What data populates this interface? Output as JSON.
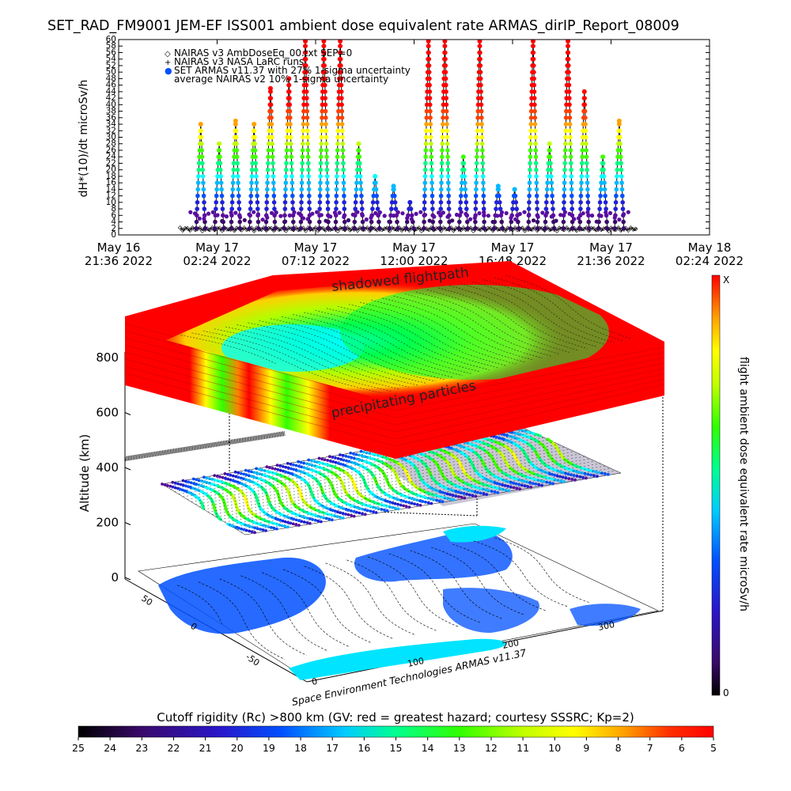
{
  "title": "SET_RAD_FM9001  JEM-EF ISS001 ambient dose equivalent rate ARMAS_dirIP_Report_08009",
  "colors": {
    "spectrum": [
      "#000000",
      "#3a0a6a",
      "#5a0ea0",
      "#2020d8",
      "#0050ff",
      "#00b8ff",
      "#00ffff",
      "#00ff80",
      "#40ff00",
      "#c0ff00",
      "#ffff00",
      "#ffa000",
      "#ff4000",
      "#ff0000"
    ],
    "ocean": "#00e4ff",
    "land": "#0050ff",
    "curve": "#000000"
  },
  "chart_data": [
    {
      "type": "scatter",
      "ylabel": "dH*(10)/dt microSv/h",
      "ylim": [
        0,
        60
      ],
      "yticks": [
        "0",
        "2",
        "4",
        "6",
        "8",
        "10",
        "12",
        "14",
        "16",
        "18",
        "20",
        "22",
        "24",
        "26",
        "28",
        "30",
        "32",
        "34",
        "36",
        "38",
        "40",
        "42",
        "44",
        "46",
        "48",
        "50",
        "52",
        "54",
        "56",
        "58",
        "60"
      ],
      "xticks": [
        {
          "line1": "May 16",
          "line2": "21:36 2022"
        },
        {
          "line1": "May 17",
          "line2": "02:24 2022"
        },
        {
          "line1": "May 17",
          "line2": "07:12 2022"
        },
        {
          "line1": "May 17",
          "line2": "12:00 2022"
        },
        {
          "line1": "May 17",
          "line2": "16:48 2022"
        },
        {
          "line1": "May 17",
          "line2": "21:36 2022"
        },
        {
          "line1": "May 18",
          "line2": "02:24 2022"
        }
      ],
      "legend": [
        {
          "symbol": "◇",
          "label": "NAIRAS v3 AmbDoseEq_00.txt SEP=0"
        },
        {
          "symbol": "+",
          "label": "NAIRAS v3 NASA LaRC runs"
        },
        {
          "symbol": "●",
          "label": "SET ARMAS v11.37 with 27% 1-sigma uncertainty"
        },
        {
          "symbol": "",
          "label": "average NAIRAS v2 10% 1-sigma uncertainty"
        }
      ],
      "series_peaks": {
        "x_hours_from_start": [
          4.0,
          4.9,
          5.7,
          6.6,
          7.4,
          8.3,
          9.1,
          10.0,
          10.8,
          11.7,
          12.5,
          13.4,
          14.2,
          15.1,
          15.9,
          16.8,
          17.6,
          18.5,
          19.3,
          20.2,
          21.0,
          21.9,
          22.7,
          23.6,
          24.4
        ],
        "peak_values": [
          34,
          28,
          35,
          34,
          45,
          48,
          60,
          60,
          60,
          28,
          18,
          15,
          10,
          60,
          60,
          24,
          60,
          15,
          14,
          60,
          28,
          60,
          44,
          24,
          35
        ]
      }
    },
    {
      "type": "heatmap",
      "ylabel": "Altitude (km)",
      "zticks": [
        "0",
        "200",
        "400",
        "600",
        "800"
      ],
      "xaxis_ticks": [
        "0",
        "100",
        "200",
        "300"
      ],
      "yaxis_ticks": [
        "-50",
        "0",
        "50"
      ],
      "annotations": {
        "top": "shadowed flightpath",
        "middle": "precipitating particles",
        "credit": "Space Environment Technologies ARMAS v11.37"
      }
    }
  ],
  "right_colorbar": {
    "label": "flight ambient dose equivalent rate microSv/h",
    "top_tick": "X",
    "bottom_tick": "0"
  },
  "bottom_colorbar": {
    "title": "Cutoff rigidity (Rc) >800 km (GV: red = greatest hazard; courtesy SSSRC; Kp=2)",
    "ticks": [
      "25",
      "24",
      "23",
      "22",
      "21",
      "20",
      "19",
      "18",
      "17",
      "16",
      "15",
      "14",
      "13",
      "12",
      "11",
      "10",
      "9",
      "8",
      "7",
      "6",
      "5"
    ]
  }
}
